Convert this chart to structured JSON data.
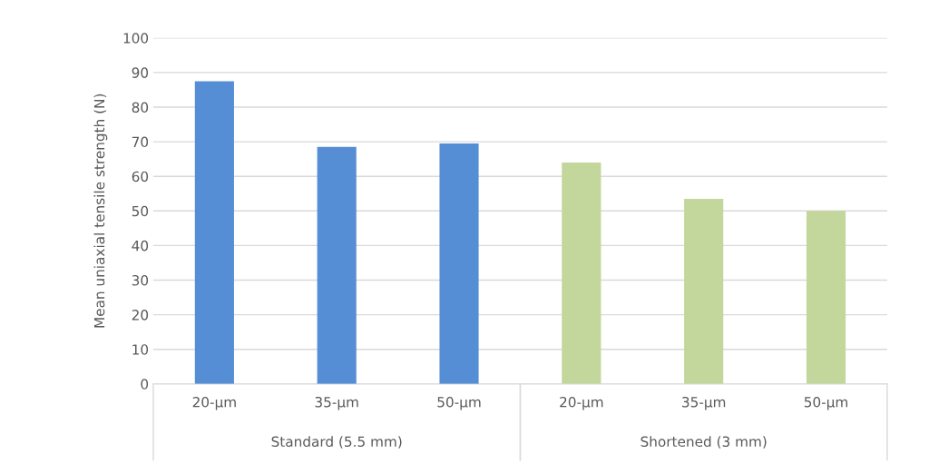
{
  "chart_data": {
    "type": "bar",
    "ylabel": "Mean uniaxial tensile strength (N)",
    "categories": [
      "20-µm",
      "35-µm",
      "50-µm",
      "20-µm",
      "35-µm",
      "50-µm"
    ],
    "values": [
      87.5,
      68.5,
      69.5,
      64,
      53.5,
      50
    ],
    "colors": [
      "#558ed5",
      "#558ed5",
      "#558ed5",
      "#c3d69b",
      "#c3d69b",
      "#c3d69b"
    ],
    "annotations": [
      "Standard (5.5 mm)",
      "Shortened (3 mm)"
    ],
    "ylim": [
      0,
      100
    ],
    "yticks": [
      0,
      10,
      20,
      30,
      40,
      50,
      60,
      70,
      80,
      90,
      100
    ],
    "grid": "y",
    "legend": false
  }
}
